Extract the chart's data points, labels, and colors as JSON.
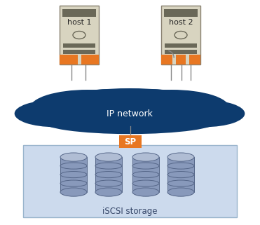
{
  "bg_color": "#ffffff",
  "cloud_color": "#0d3b6e",
  "storage_box_color": "#ccdaed",
  "storage_box_edge": "#99b4cc",
  "sp_color": "#e87722",
  "sp_text": "SP",
  "ip_text": "IP network",
  "iscsi_text": "iSCSI storage",
  "host1_label": "host 1",
  "host2_label": "host 2",
  "host_body_color": "#d8d4c0",
  "host_body_edge": "#888070",
  "host_stripe_color": "#6a6858",
  "host_port_color": "#e87722",
  "disk_body_color": "#8899bb",
  "disk_top_color": "#b0bdd4",
  "disk_edge_color": "#556688",
  "line_color": "#888888",
  "figw": 3.71,
  "figh": 3.21,
  "dpi": 100
}
